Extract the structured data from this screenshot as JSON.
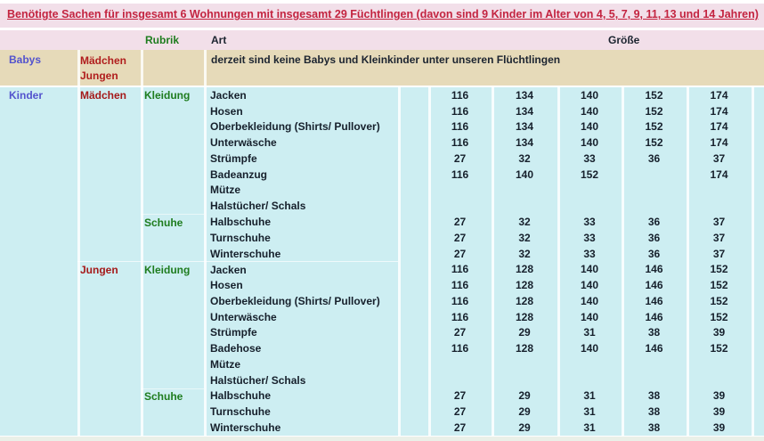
{
  "title": "Benötigte Sachen für insgesamt 6 Wohnungen mit insgesamt 29 Füchtlingen (davon sind 9 Kinder im Alter von 4, 5, 7, 9, 11, 13 und 14 Jahren)",
  "columns": {
    "rubrik": "Rubrik",
    "art": "Art",
    "groesse": "Größe"
  },
  "babys": {
    "group": "Babys",
    "genders": [
      "Mädchen",
      "Jungen"
    ],
    "note": "derzeit sind keine Babys und Kleinkinder unter unseren Flüchtlingen"
  },
  "kinder": {
    "group": "Kinder",
    "subgroups": [
      {
        "gender": "Mädchen",
        "rubrics": [
          {
            "rubric": "Kleidung",
            "items": [
              {
                "name": "Jacken",
                "sizes": [
                  "116",
                  "134",
                  "140",
                  "152",
                  "174"
                ]
              },
              {
                "name": "Hosen",
                "sizes": [
                  "116",
                  "134",
                  "140",
                  "152",
                  "174"
                ]
              },
              {
                "name": "Oberbekleidung (Shirts/ Pullover)",
                "sizes": [
                  "116",
                  "134",
                  "140",
                  "152",
                  "174"
                ]
              },
              {
                "name": "Unterwäsche",
                "sizes": [
                  "116",
                  "134",
                  "140",
                  "152",
                  "174"
                ]
              },
              {
                "name": "Strümpfe",
                "sizes": [
                  "27",
                  "32",
                  "33",
                  "36",
                  "37"
                ]
              },
              {
                "name": "Badeanzug",
                "sizes": [
                  "116",
                  "140",
                  "152",
                  "",
                  "174"
                ]
              },
              {
                "name": "Mütze",
                "sizes": [
                  "",
                  "",
                  "",
                  "",
                  ""
                ]
              },
              {
                "name": "Halstücher/ Schals",
                "sizes": [
                  "",
                  "",
                  "",
                  "",
                  ""
                ]
              }
            ]
          },
          {
            "rubric": "Schuhe",
            "items": [
              {
                "name": "Halbschuhe",
                "sizes": [
                  "27",
                  "32",
                  "33",
                  "36",
                  "37"
                ]
              },
              {
                "name": "Turnschuhe",
                "sizes": [
                  "27",
                  "32",
                  "33",
                  "36",
                  "37"
                ]
              },
              {
                "name": "Winterschuhe",
                "sizes": [
                  "27",
                  "32",
                  "33",
                  "36",
                  "37"
                ]
              }
            ]
          }
        ]
      },
      {
        "gender": "Jungen",
        "rubrics": [
          {
            "rubric": "Kleidung",
            "items": [
              {
                "name": "Jacken",
                "sizes": [
                  "116",
                  "128",
                  "140",
                  "146",
                  "152"
                ]
              },
              {
                "name": "Hosen",
                "sizes": [
                  "116",
                  "128",
                  "140",
                  "146",
                  "152"
                ]
              },
              {
                "name": "Oberbekleidung (Shirts/ Pullover)",
                "sizes": [
                  "116",
                  "128",
                  "140",
                  "146",
                  "152"
                ]
              },
              {
                "name": "Unterwäsche",
                "sizes": [
                  "116",
                  "128",
                  "140",
                  "146",
                  "152"
                ]
              },
              {
                "name": "Strümpfe",
                "sizes": [
                  "27",
                  "29",
                  "31",
                  "38",
                  "39"
                ]
              },
              {
                "name": "Badehose",
                "sizes": [
                  "116",
                  "128",
                  "140",
                  "146",
                  "152"
                ]
              },
              {
                "name": "Mütze",
                "sizes": [
                  "",
                  "",
                  "",
                  "",
                  ""
                ]
              },
              {
                "name": "Halstücher/ Schals",
                "sizes": [
                  "",
                  "",
                  "",
                  "",
                  ""
                ]
              }
            ]
          },
          {
            "rubric": "Schuhe",
            "items": [
              {
                "name": "Halbschuhe",
                "sizes": [
                  "27",
                  "29",
                  "31",
                  "38",
                  "39"
                ]
              },
              {
                "name": "Turnschuhe",
                "sizes": [
                  "27",
                  "29",
                  "31",
                  "38",
                  "39"
                ]
              },
              {
                "name": "Winterschuhe",
                "sizes": [
                  "27",
                  "29",
                  "31",
                  "38",
                  "39"
                ]
              }
            ]
          }
        ]
      }
    ]
  },
  "colors": {
    "title_red": "#c32440",
    "header_pink": "#f2dfe9",
    "babys_tan": "#e6dab9",
    "body_cyan": "#cdeef2",
    "group_blue": "#5353cd",
    "gender_red": "#a51a1a",
    "rubric_green": "#1e7c1e",
    "text_dark": "#16202c"
  }
}
